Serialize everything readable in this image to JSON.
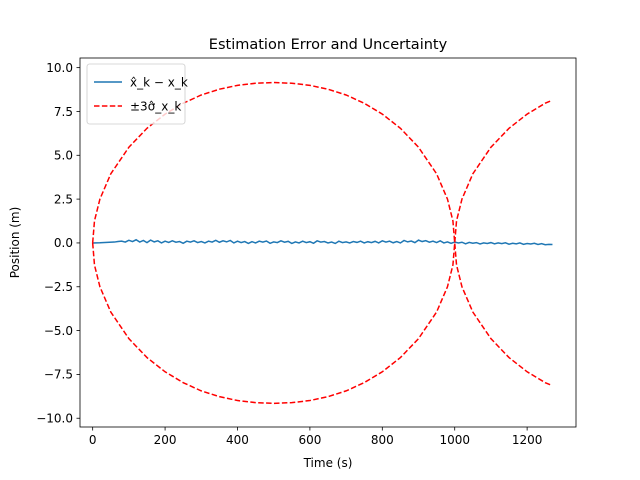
{
  "chart_data": {
    "type": "line",
    "title": "Estimation Error and Uncertainty",
    "xlabel": "Time (s)",
    "ylabel": "Position (m)",
    "xlim": [
      -35,
      1335
    ],
    "ylim": [
      -10.5,
      10.55
    ],
    "xticks": [
      0,
      200,
      400,
      600,
      800,
      1000,
      1200
    ],
    "xtick_labels": [
      "0",
      "200",
      "400",
      "600",
      "800",
      "1000",
      "1200"
    ],
    "yticks": [
      -10.0,
      -7.5,
      -5.0,
      -2.5,
      0.0,
      2.5,
      5.0,
      7.5,
      10.0
    ],
    "ytick_labels": [
      "−10.0",
      "−7.5",
      "−5.0",
      "−2.5",
      "0.0",
      "2.5",
      "5.0",
      "7.5",
      "10.0"
    ],
    "grid": false,
    "legend_position": "top-left",
    "series": [
      {
        "name": "x̂_k − x_k",
        "style": "solid",
        "color": "#1f77b4",
        "x": [
          0,
          20,
          40,
          60,
          70,
          80,
          90,
          100,
          110,
          120,
          130,
          140,
          150,
          160,
          170,
          180,
          190,
          200,
          210,
          220,
          230,
          240,
          250,
          260,
          270,
          280,
          290,
          300,
          310,
          320,
          330,
          340,
          350,
          360,
          370,
          380,
          390,
          400,
          410,
          420,
          430,
          440,
          450,
          460,
          470,
          480,
          490,
          500,
          510,
          520,
          530,
          540,
          550,
          560,
          570,
          580,
          590,
          600,
          610,
          620,
          630,
          640,
          650,
          660,
          670,
          680,
          690,
          700,
          710,
          720,
          730,
          740,
          750,
          760,
          770,
          780,
          790,
          800,
          810,
          820,
          830,
          840,
          850,
          860,
          870,
          880,
          890,
          900,
          910,
          920,
          930,
          940,
          950,
          960,
          970,
          980,
          990,
          1000,
          1010,
          1020,
          1030,
          1040,
          1050,
          1060,
          1070,
          1080,
          1090,
          1100,
          1110,
          1120,
          1130,
          1140,
          1150,
          1160,
          1170,
          1180,
          1190,
          1200,
          1210,
          1220,
          1230,
          1240,
          1250,
          1260,
          1270
        ],
        "y": [
          0.0,
          0.01,
          0.03,
          0.05,
          0.08,
          0.1,
          0.05,
          0.15,
          0.08,
          0.18,
          0.05,
          0.14,
          0.02,
          0.16,
          0.06,
          0.12,
          0.0,
          0.1,
          0.03,
          0.12,
          0.04,
          0.08,
          -0.02,
          0.1,
          0.05,
          0.12,
          0.02,
          0.08,
          0.0,
          0.1,
          0.05,
          0.15,
          0.04,
          0.12,
          0.06,
          0.14,
          0.0,
          0.1,
          0.02,
          0.08,
          -0.03,
          0.07,
          0.0,
          0.1,
          0.05,
          0.11,
          -0.02,
          0.06,
          0.02,
          0.12,
          0.04,
          0.09,
          -0.03,
          0.06,
          0.0,
          0.1,
          0.02,
          0.07,
          -0.02,
          0.12,
          0.05,
          0.08,
          0.0,
          0.05,
          -0.03,
          0.1,
          0.02,
          0.06,
          0.0,
          0.08,
          0.03,
          0.1,
          0.0,
          0.07,
          0.02,
          0.09,
          0.0,
          0.12,
          0.05,
          0.1,
          0.01,
          0.08,
          0.0,
          0.14,
          0.06,
          0.11,
          0.02,
          0.16,
          0.08,
          0.13,
          0.04,
          0.1,
          0.02,
          0.12,
          0.0,
          0.06,
          -0.02,
          0.05,
          0.0,
          0.04,
          -0.05,
          0.03,
          -0.02,
          0.02,
          -0.06,
          0.0,
          -0.03,
          0.02,
          -0.05,
          0.0,
          -0.04,
          0.01,
          -0.07,
          -0.02,
          -0.05,
          0.0,
          -0.08,
          -0.03,
          -0.06,
          -0.02,
          -0.09,
          -0.04,
          -0.1,
          -0.08,
          -0.09
        ]
      },
      {
        "name": "±3σ̂_x_k",
        "style": "dashed",
        "color": "#ff0000",
        "description_points": "upper envelope; lower envelope is the negative",
        "x": [
          0,
          5,
          20,
          50,
          100,
          150,
          200,
          250,
          300,
          350,
          400,
          450,
          500,
          550,
          600,
          650,
          700,
          750,
          800,
          850,
          900,
          950,
          980,
          995,
          1000,
          1005,
          1020,
          1050,
          1100,
          1150,
          1200,
          1250,
          1265
        ],
        "y": [
          0.0,
          1.26,
          2.5,
          3.94,
          5.46,
          6.54,
          7.35,
          7.97,
          8.44,
          8.77,
          8.99,
          9.11,
          9.15,
          9.11,
          8.99,
          8.77,
          8.44,
          7.97,
          7.35,
          6.54,
          5.46,
          3.94,
          2.5,
          1.26,
          0.0,
          1.26,
          2.5,
          3.94,
          5.46,
          6.54,
          7.35,
          7.97,
          8.1
        ]
      }
    ]
  }
}
